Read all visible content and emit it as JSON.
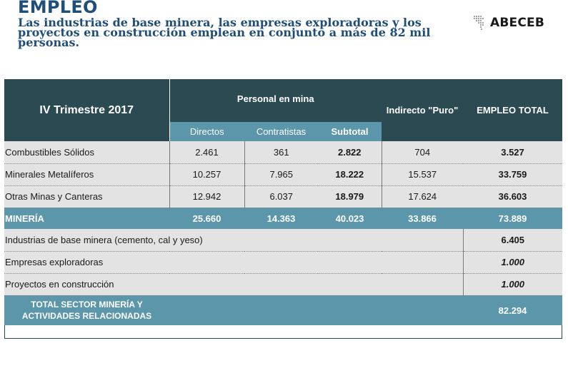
{
  "header": {
    "title": "EMPLEO",
    "subtitle": "Las industrias de base minera, las empresas exploradoras y los proyectos en construcción emplean en conjunto a más de 82 mil personas.",
    "logo_text": "ABECEB"
  },
  "table": {
    "period_label": "IV Trimestre 2017",
    "group_label": "Personal en mina",
    "indirect_label": "Indirecto \"Puro\"",
    "total_label": "EMPLEO TOTAL",
    "sub_headers": [
      "Directos",
      "Contratistas",
      "Subtotal"
    ],
    "rows": [
      {
        "label": "Combustibles Sólidos",
        "directos": "2.461",
        "contratistas": "361",
        "subtotal": "2.822",
        "indirecto": "704",
        "total": "3.527"
      },
      {
        "label": "Minerales Metalíferos",
        "directos": "10.257",
        "contratistas": "7.965",
        "subtotal": "18.222",
        "indirecto": "15.537",
        "total": "33.759"
      },
      {
        "label": "Otras Minas y Canteras",
        "directos": "12.942",
        "contratistas": "6.037",
        "subtotal": "18.979",
        "indirecto": "17.624",
        "total": "36.603"
      }
    ],
    "mineria": {
      "label": "MINERÍA",
      "directos": "25.660",
      "contratistas": "14.363",
      "subtotal": "40.023",
      "indirecto": "33.866",
      "total": "73.889"
    },
    "extras": [
      {
        "label": "Industrias de base minera (cemento, cal y yeso)",
        "total": "6.405"
      },
      {
        "label": "Empresas exploradoras",
        "total": "1.000"
      },
      {
        "label": "Proyectos en construcción",
        "total": "1.000"
      }
    ],
    "grand_total": {
      "label_line1": "TOTAL SECTOR MINERÍA Y",
      "label_line2": "ACTIVIDADES RELACIONADAS",
      "value": "82.294"
    }
  },
  "colors": {
    "dark_teal": "#2c4a52",
    "mid_blue": "#5b96ab",
    "row_gray": "#e3e3e3",
    "title_blue": "#1f4e79"
  }
}
